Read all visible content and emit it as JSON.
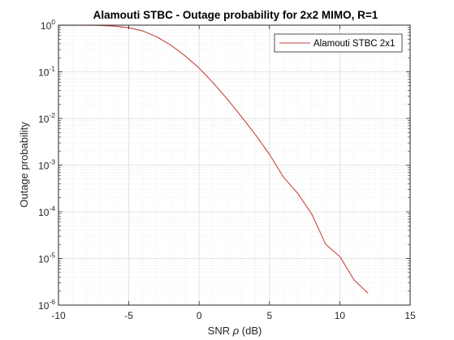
{
  "chart_data": {
    "type": "line",
    "title": "Alamouti STBC - Outage probability for 2x2 MIMO, R=1",
    "xlabel_prefix": "SNR ",
    "xlabel_symbol": "ρ",
    "xlabel_suffix": " (dB)",
    "ylabel": "Outage probability",
    "xlim": [
      -10,
      15
    ],
    "ylim": [
      1e-06,
      1
    ],
    "yscale": "log",
    "grid": true,
    "minor_grid": true,
    "legend_position": "top-right",
    "x_ticks": [
      -10,
      -5,
      0,
      5,
      10,
      15
    ],
    "y_ticks": [
      {
        "base": "10",
        "exp": "0",
        "value": 1
      },
      {
        "base": "10",
        "exp": "-1",
        "value": 0.1
      },
      {
        "base": "10",
        "exp": "-2",
        "value": 0.01
      },
      {
        "base": "10",
        "exp": "-3",
        "value": 0.001
      },
      {
        "base": "10",
        "exp": "-4",
        "value": 0.0001
      },
      {
        "base": "10",
        "exp": "-5",
        "value": 1e-05
      },
      {
        "base": "10",
        "exp": "-6",
        "value": 1e-06
      }
    ],
    "series": [
      {
        "name": "Alamouti STBC 2x1",
        "color": "#c8443c",
        "x": [
          -10,
          -9,
          -8,
          -7,
          -6,
          -5,
          -4,
          -3,
          -2,
          -1,
          0,
          1,
          2,
          3,
          4,
          5,
          6,
          7,
          8,
          9,
          10,
          11,
          12
        ],
        "y": [
          0.998,
          0.997,
          0.995,
          0.985,
          0.955,
          0.88,
          0.75,
          0.56,
          0.37,
          0.22,
          0.12,
          0.058,
          0.026,
          0.011,
          0.0045,
          0.0017,
          0.00055,
          0.00025,
          9e-05,
          2e-05,
          1.1e-05,
          3.5e-06,
          1.8e-06
        ]
      }
    ]
  }
}
